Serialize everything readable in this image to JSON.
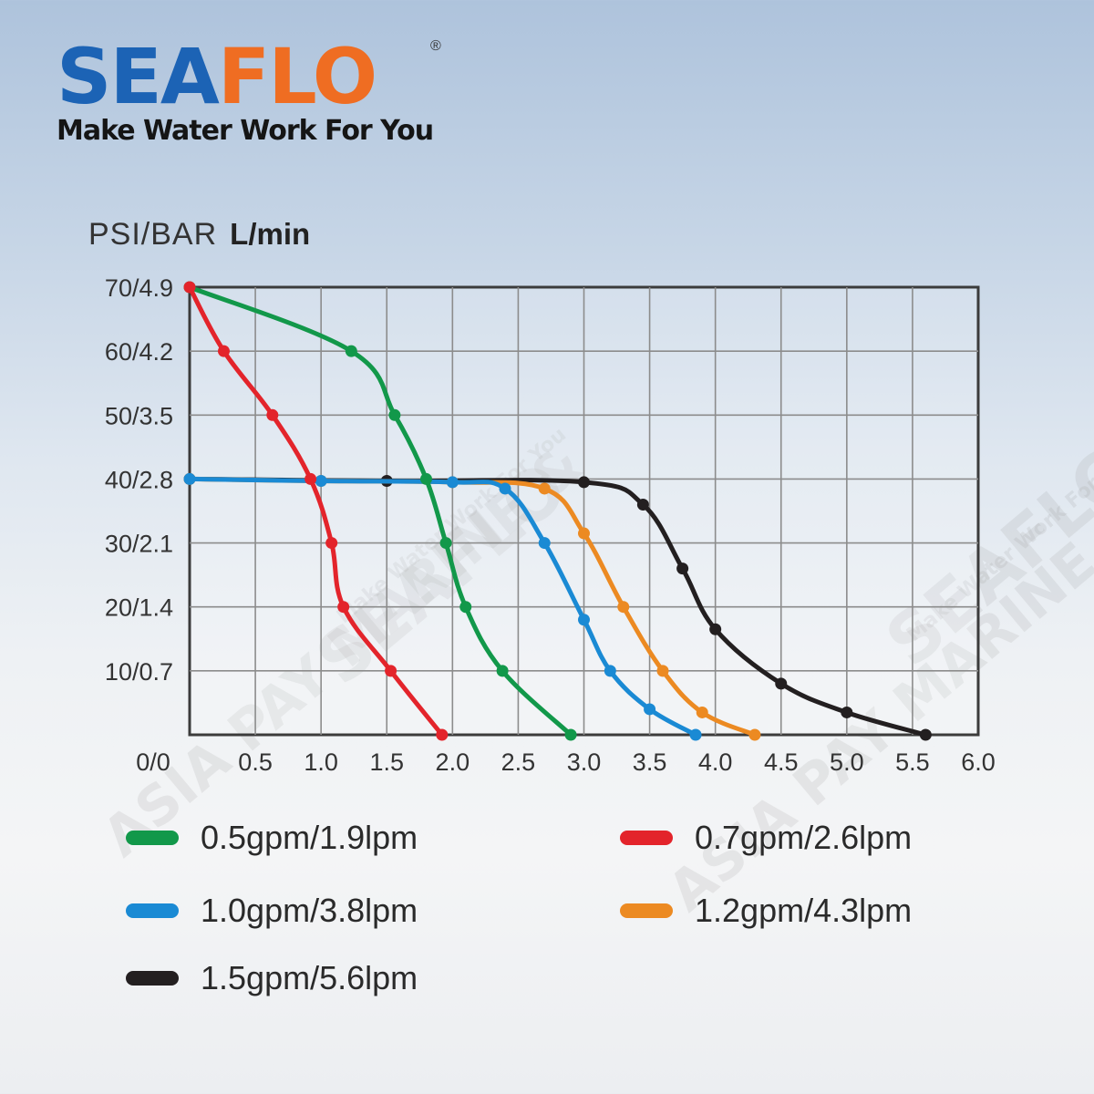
{
  "brand": {
    "name_part1": "SEA",
    "name_part2": "FLO",
    "registered": "®",
    "tagline": "Make Water Work For You"
  },
  "watermarks": [
    "SEAFLO",
    "Make Water Work For You",
    "ASIA PAY MARINE &"
  ],
  "chart_data": {
    "type": "line",
    "ylabel": "PSI/BAR",
    "xlabel": "L/min",
    "xlim": [
      0,
      6.0
    ],
    "ylim": [
      0,
      70
    ],
    "x_ticks": [
      "0.5",
      "1.0",
      "1.5",
      "2.0",
      "2.5",
      "3.0",
      "3.5",
      "4.0",
      "4.5",
      "5.0",
      "5.5",
      "6.0"
    ],
    "y_ticks": [
      "10/0.7",
      "20/1.4",
      "30/2.1",
      "40/2.8",
      "50/3.5",
      "60/4.2",
      "70/4.9"
    ],
    "origin_label": "0/0",
    "grid": true,
    "legend_position": "bottom",
    "series": [
      {
        "name": "0.5gpm/1.9lpm",
        "color": "#12984a",
        "points": [
          [
            0,
            70
          ],
          [
            1.23,
            60
          ],
          [
            1.56,
            50
          ],
          [
            1.8,
            40
          ],
          [
            1.95,
            30
          ],
          [
            2.1,
            20
          ],
          [
            2.38,
            10
          ],
          [
            2.9,
            0
          ]
        ]
      },
      {
        "name": "0.7gpm/2.6lpm",
        "color": "#e3242b",
        "points": [
          [
            0,
            70
          ],
          [
            0.26,
            60
          ],
          [
            0.63,
            50
          ],
          [
            0.92,
            40
          ],
          [
            1.08,
            30
          ],
          [
            1.17,
            20
          ],
          [
            1.53,
            10
          ],
          [
            1.92,
            0
          ]
        ]
      },
      {
        "name": "1.0gpm/3.8lpm",
        "color": "#1a8ad4",
        "points": [
          [
            0,
            40
          ],
          [
            1.0,
            39.7
          ],
          [
            2.0,
            39.5
          ],
          [
            2.4,
            38.5
          ],
          [
            2.7,
            30
          ],
          [
            3.0,
            18
          ],
          [
            3.2,
            10
          ],
          [
            3.5,
            4
          ],
          [
            3.85,
            0
          ]
        ]
      },
      {
        "name": "1.2gpm/4.3lpm",
        "color": "#ec8a22",
        "points": [
          [
            0,
            40
          ],
          [
            1.0,
            39.7
          ],
          [
            2.0,
            39.5
          ],
          [
            2.7,
            38.5
          ],
          [
            3.0,
            31.5
          ],
          [
            3.3,
            20
          ],
          [
            3.6,
            10
          ],
          [
            3.9,
            3.5
          ],
          [
            4.3,
            0
          ]
        ]
      },
      {
        "name": "1.5gpm/5.6lpm",
        "color": "#231f20",
        "points": [
          [
            0,
            40
          ],
          [
            1.5,
            39.7
          ],
          [
            3.0,
            39.5
          ],
          [
            3.45,
            36
          ],
          [
            3.75,
            26
          ],
          [
            4.0,
            16.5
          ],
          [
            4.5,
            8
          ],
          [
            5.0,
            3.5
          ],
          [
            5.6,
            0
          ]
        ]
      }
    ]
  }
}
